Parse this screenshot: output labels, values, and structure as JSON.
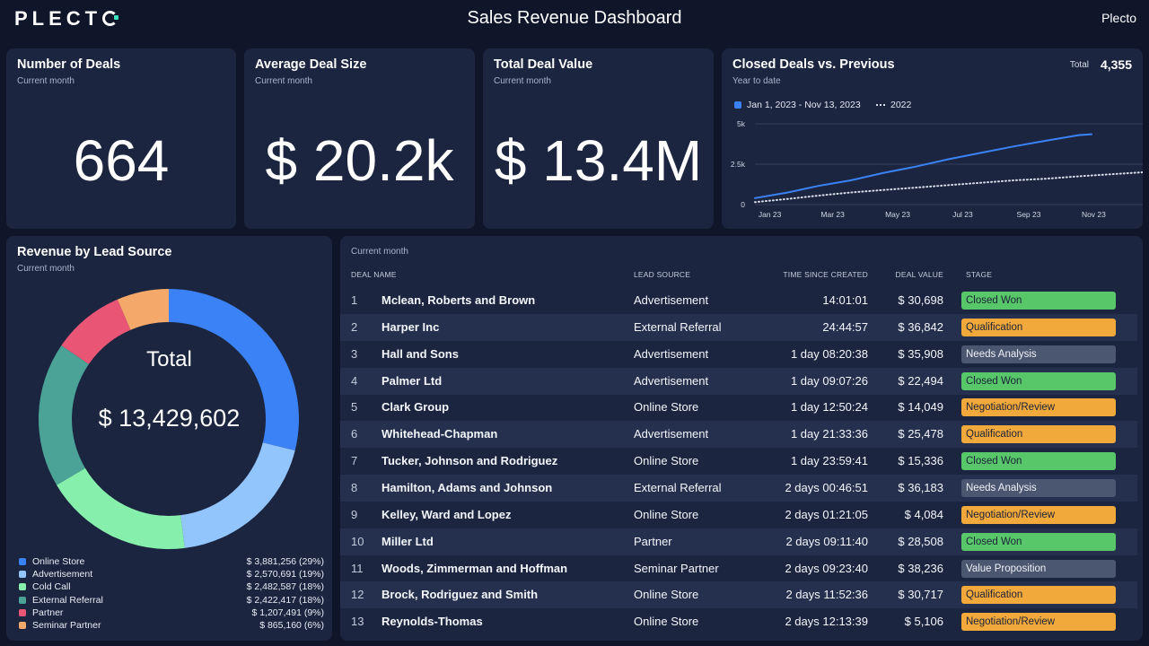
{
  "header": {
    "logo": "PLECT",
    "title": "Sales Revenue Dashboard",
    "brand": "Plecto"
  },
  "kpis": [
    {
      "title": "Number of Deals",
      "subtitle": "Current month",
      "value": "664"
    },
    {
      "title": "Average Deal Size",
      "subtitle": "Current month",
      "value": "$ 20.2k"
    },
    {
      "title": "Total Deal Value",
      "subtitle": "Current month",
      "value": "$ 13.4M"
    }
  ],
  "closed_deals": {
    "title": "Closed Deals vs. Previous",
    "subtitle": "Year to date",
    "total_label": "Total",
    "total_value": "4,355",
    "legend_current": "Jan 1, 2023 - Nov 13, 2023",
    "legend_previous": "2022",
    "colors": {
      "current": "#3b82f6",
      "previous": "#d9deea"
    }
  },
  "revenue_by_source": {
    "title": "Revenue by Lead Source",
    "subtitle": "Current month",
    "total_label": "Total",
    "total_value": "$ 13,429,602",
    "items": [
      {
        "name": "Online Store",
        "value": "$ 3,881,256 (29%)",
        "color": "#3b82f6"
      },
      {
        "name": "Advertisement",
        "value": "$ 2,570,691 (19%)",
        "color": "#93c5fd"
      },
      {
        "name": "Cold Call",
        "value": "$ 2,482,587 (18%)",
        "color": "#86efac"
      },
      {
        "name": "External Referral",
        "value": "$ 2,422,417 (18%)",
        "color": "#4aa396"
      },
      {
        "name": "Partner",
        "value": "$ 1,207,491 (9%)",
        "color": "#e95575"
      },
      {
        "name": "Seminar Partner",
        "value": "$ 865,160 (6%)",
        "color": "#f4a96a"
      }
    ]
  },
  "deals_table": {
    "subtitle": "Current month",
    "headers": {
      "name": "DEAL NAME",
      "source": "LEAD SOURCE",
      "time": "TIME SINCE CREATED",
      "value": "DEAL VALUE",
      "stage": "STAGE"
    },
    "rows": [
      {
        "num": "1",
        "name": "Mclean, Roberts and Brown",
        "source": "Advertisement",
        "time": "14:01:01",
        "value": "$ 30,698",
        "stage": "Closed Won"
      },
      {
        "num": "2",
        "name": "Harper Inc",
        "source": "External Referral",
        "time": "24:44:57",
        "value": "$ 36,842",
        "stage": "Qualification"
      },
      {
        "num": "3",
        "name": "Hall and Sons",
        "source": "Advertisement",
        "time": "1 day 08:20:38",
        "value": "$ 35,908",
        "stage": "Needs Analysis"
      },
      {
        "num": "4",
        "name": "Palmer Ltd",
        "source": "Advertisement",
        "time": "1 day 09:07:26",
        "value": "$ 22,494",
        "stage": "Closed Won"
      },
      {
        "num": "5",
        "name": "Clark Group",
        "source": "Online Store",
        "time": "1 day 12:50:24",
        "value": "$ 14,049",
        "stage": "Negotiation/Review"
      },
      {
        "num": "6",
        "name": "Whitehead-Chapman",
        "source": "Advertisement",
        "time": "1 day 21:33:36",
        "value": "$ 25,478",
        "stage": "Qualification"
      },
      {
        "num": "7",
        "name": "Tucker, Johnson and Rodriguez",
        "source": "Online Store",
        "time": "1 day 23:59:41",
        "value": "$ 15,336",
        "stage": "Closed Won"
      },
      {
        "num": "8",
        "name": "Hamilton, Adams and Johnson",
        "source": "External Referral",
        "time": "2 days 00:46:51",
        "value": "$ 36,183",
        "stage": "Needs Analysis"
      },
      {
        "num": "9",
        "name": "Kelley, Ward and Lopez",
        "source": "Online Store",
        "time": "2 days 01:21:05",
        "value": "$ 4,084",
        "stage": "Negotiation/Review"
      },
      {
        "num": "10",
        "name": "Miller Ltd",
        "source": "Partner",
        "time": "2 days 09:11:40",
        "value": "$ 28,508",
        "stage": "Closed Won"
      },
      {
        "num": "11",
        "name": "Woods, Zimmerman and Hoffman",
        "source": "Seminar Partner",
        "time": "2 days 09:23:40",
        "value": "$ 38,236",
        "stage": "Value Proposition"
      },
      {
        "num": "12",
        "name": "Brock, Rodriguez and Smith",
        "source": "Online Store",
        "time": "2 days 11:52:36",
        "value": "$ 30,717",
        "stage": "Qualification"
      },
      {
        "num": "13",
        "name": "Reynolds-Thomas",
        "source": "Online Store",
        "time": "2 days 12:13:39",
        "value": "$ 5,106",
        "stage": "Negotiation/Review"
      }
    ],
    "stage_colors": {
      "Closed Won": "#58c76a",
      "Qualification": "#f2a93b",
      "Needs Analysis": "#4b5770",
      "Negotiation/Review": "#f2a93b",
      "Value Proposition": "#4b5770"
    }
  },
  "chart_data": [
    {
      "type": "pie",
      "title": "Revenue by Lead Source",
      "categories": [
        "Online Store",
        "Advertisement",
        "Cold Call",
        "External Referral",
        "Partner",
        "Seminar Partner"
      ],
      "values": [
        3881256,
        2570691,
        2482587,
        2422417,
        1207491,
        865160
      ],
      "percent": [
        29,
        19,
        18,
        18,
        9,
        6
      ]
    },
    {
      "type": "line",
      "title": "Closed Deals vs. Previous",
      "x_ticks": [
        "Jan 23",
        "Mar 23",
        "May 23",
        "Jul 23",
        "Sep 23",
        "Nov 23"
      ],
      "y_ticks": [
        "0",
        "2.5k",
        "5k"
      ],
      "ylim": [
        0,
        5000
      ],
      "grid": true,
      "legend": "top-left",
      "series": [
        {
          "name": "Jan 1, 2023 - Nov 13, 2023",
          "style": "solid",
          "x": [
            "2023-01-01",
            "2023-02-01",
            "2023-03-01",
            "2023-04-01",
            "2023-05-01",
            "2023-06-01",
            "2023-07-01",
            "2023-08-01",
            "2023-09-01",
            "2023-10-01",
            "2023-11-01",
            "2023-11-13"
          ],
          "y": [
            400,
            750,
            1150,
            1500,
            1950,
            2350,
            2800,
            3200,
            3600,
            3950,
            4300,
            4355
          ]
        },
        {
          "name": "2022",
          "style": "dotted",
          "x": [
            "2023-01-01",
            "2023-02-01",
            "2023-03-01",
            "2023-04-01",
            "2023-05-01",
            "2023-06-01",
            "2023-07-01",
            "2023-08-01",
            "2023-09-01",
            "2023-10-01",
            "2023-11-01",
            "2023-12-31"
          ],
          "y": [
            150,
            350,
            550,
            750,
            900,
            1050,
            1200,
            1350,
            1500,
            1600,
            1750,
            2000
          ]
        }
      ]
    }
  ]
}
